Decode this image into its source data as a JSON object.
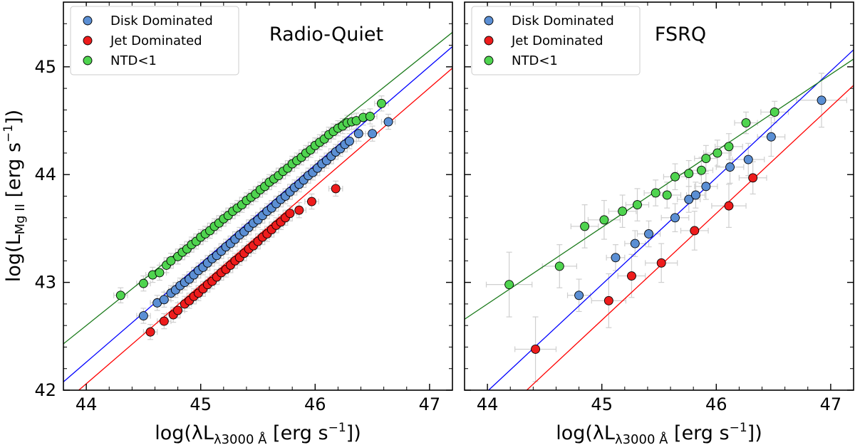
{
  "chart_data": [
    {
      "type": "scatter",
      "title": "Radio-Quiet",
      "xlabel": "log(λL_λ3000 Å [erg s^-1])",
      "ylabel": "log(L_MgII [erg s^-1])",
      "xlim": [
        43.8,
        47.2
      ],
      "ylim": [
        42.0,
        45.6
      ],
      "xticks": [
        "44",
        "45",
        "46",
        "47"
      ],
      "yticks": [
        "42",
        "43",
        "44",
        "45"
      ],
      "legend_position": "top-left",
      "series": [
        {
          "name": "Disk Dominated",
          "color": "#5b8fd4",
          "fit": {
            "slope": 0.915,
            "intercept": 2.0,
            "color": "#0000ff"
          },
          "x": [
            44.5,
            44.62,
            44.68,
            44.74,
            44.78,
            44.82,
            44.86,
            44.9,
            44.94,
            44.98,
            45.02,
            45.06,
            45.1,
            45.14,
            45.18,
            45.22,
            45.26,
            45.3,
            45.34,
            45.38,
            45.42,
            45.46,
            45.5,
            45.54,
            45.58,
            45.62,
            45.66,
            45.7,
            45.74,
            45.78,
            45.82,
            45.86,
            45.9,
            45.94,
            45.98,
            46.02,
            46.06,
            46.1,
            46.14,
            46.18,
            46.22,
            46.26,
            46.3,
            46.38,
            46.5,
            46.64
          ],
          "y": [
            42.69,
            42.81,
            42.84,
            42.9,
            42.93,
            42.97,
            43.0,
            43.03,
            43.07,
            43.11,
            43.14,
            43.18,
            43.22,
            43.25,
            43.29,
            43.33,
            43.36,
            43.4,
            43.44,
            43.47,
            43.51,
            43.55,
            43.58,
            43.62,
            43.66,
            43.69,
            43.73,
            43.77,
            43.8,
            43.84,
            43.88,
            43.91,
            43.95,
            43.99,
            44.02,
            44.06,
            44.1,
            44.13,
            44.17,
            44.21,
            44.24,
            44.28,
            44.31,
            44.38,
            44.38,
            44.49
          ]
        },
        {
          "name": "Jet Dominated",
          "color": "#ee1c1c",
          "fit": {
            "slope": 0.915,
            "intercept": 1.8,
            "color": "#ff0000"
          },
          "x": [
            44.56,
            44.68,
            44.76,
            44.8,
            44.86,
            44.9,
            44.94,
            44.98,
            45.02,
            45.06,
            45.1,
            45.14,
            45.18,
            45.22,
            45.26,
            45.3,
            45.34,
            45.38,
            45.42,
            45.46,
            45.5,
            45.54,
            45.58,
            45.62,
            45.66,
            45.7,
            45.74,
            45.78,
            45.86,
            45.97,
            46.18
          ],
          "y": [
            42.54,
            42.64,
            42.7,
            42.74,
            42.8,
            42.83,
            42.87,
            42.9,
            42.94,
            42.98,
            43.01,
            43.05,
            43.09,
            43.12,
            43.16,
            43.2,
            43.23,
            43.27,
            43.31,
            43.34,
            43.38,
            43.42,
            43.45,
            43.49,
            43.53,
            43.56,
            43.6,
            43.64,
            43.67,
            43.75,
            43.87
          ]
        },
        {
          "name": "NTD<1",
          "color": "#4fd44f",
          "fit": {
            "slope": 0.85,
            "intercept": 5.2,
            "color": "#1a7a1a"
          },
          "x": [
            44.3,
            44.5,
            44.58,
            44.64,
            44.7,
            44.74,
            44.8,
            44.84,
            44.88,
            44.92,
            44.96,
            45.0,
            45.04,
            45.08,
            45.12,
            45.16,
            45.2,
            45.24,
            45.28,
            45.32,
            45.36,
            45.4,
            45.44,
            45.48,
            45.52,
            45.56,
            45.6,
            45.64,
            45.68,
            45.72,
            45.76,
            45.8,
            45.84,
            45.88,
            45.92,
            45.96,
            46.0,
            46.04,
            46.08,
            46.12,
            46.16,
            46.2,
            46.24,
            46.28,
            46.32,
            46.36,
            46.42,
            46.48,
            46.58
          ],
          "y": [
            42.88,
            42.99,
            43.07,
            43.09,
            43.16,
            43.2,
            43.24,
            43.28,
            43.31,
            43.35,
            43.38,
            43.42,
            43.45,
            43.48,
            43.52,
            43.55,
            43.59,
            43.62,
            43.66,
            43.69,
            43.72,
            43.76,
            43.79,
            43.82,
            43.86,
            43.89,
            43.93,
            43.96,
            43.99,
            44.03,
            44.06,
            44.1,
            44.13,
            44.16,
            44.2,
            44.23,
            44.27,
            44.3,
            44.33,
            44.37,
            44.4,
            44.43,
            44.45,
            44.48,
            44.49,
            44.5,
            44.53,
            44.54,
            44.66
          ]
        }
      ]
    },
    {
      "type": "scatter",
      "title": "FSRQ",
      "xlabel": "log(λL_λ3000 Å [erg s^-1])",
      "ylabel": "",
      "xlim": [
        43.8,
        47.2
      ],
      "ylim": [
        42.0,
        45.6
      ],
      "xticks": [
        "44",
        "45",
        "46",
        "47"
      ],
      "yticks": [],
      "legend_position": "top-left",
      "series": [
        {
          "name": "Disk Dominated",
          "color": "#5b8fd4",
          "fit": {
            "slope": 0.99,
            "intercept": -1.57,
            "color": "#0000ff"
          },
          "x": [
            44.8,
            45.12,
            45.29,
            45.41,
            45.64,
            45.76,
            45.82,
            45.91,
            46.12,
            46.28,
            46.48,
            46.92
          ],
          "y": [
            42.88,
            43.23,
            43.36,
            43.45,
            43.6,
            43.77,
            43.81,
            43.89,
            44.07,
            44.14,
            44.35,
            44.69
          ],
          "xerr": [
            0.1,
            0.08,
            0.09,
            0.1,
            0.12,
            0.1,
            0.08,
            0.1,
            0.12,
            0.14,
            0.12,
            0.22
          ],
          "yerr": [
            0.15,
            0.12,
            0.12,
            0.12,
            0.13,
            0.12,
            0.12,
            0.12,
            0.15,
            0.15,
            0.18,
            0.25
          ]
        },
        {
          "name": "Jet Dominated",
          "color": "#ee1c1c",
          "fit": {
            "slope": 0.99,
            "intercept": -1.9,
            "color": "#ff0000"
          },
          "x": [
            44.42,
            45.06,
            45.26,
            45.52,
            45.81,
            46.11,
            46.32
          ],
          "y": [
            42.38,
            42.83,
            43.06,
            43.18,
            43.48,
            43.71,
            43.97
          ],
          "xerr": [
            0.18,
            0.15,
            0.12,
            0.14,
            0.12,
            0.15,
            0.12
          ],
          "yerr": [
            0.3,
            0.25,
            0.2,
            0.18,
            0.18,
            0.2,
            0.15
          ]
        },
        {
          "name": "NTD<1",
          "color": "#4fd44f",
          "fit": {
            "slope": 0.71,
            "intercept": 11.56,
            "color": "#1a7a1a"
          },
          "x": [
            44.19,
            44.63,
            44.85,
            45.02,
            45.18,
            45.31,
            45.47,
            45.57,
            45.64,
            45.76,
            45.87,
            45.91,
            46.01,
            46.11,
            46.26,
            46.51
          ],
          "y": [
            42.98,
            43.15,
            43.52,
            43.58,
            43.66,
            43.72,
            43.83,
            43.81,
            43.98,
            44.01,
            44.04,
            44.15,
            44.2,
            44.26,
            44.48,
            44.58
          ],
          "xerr": [
            0.2,
            0.15,
            0.12,
            0.14,
            0.12,
            0.1,
            0.1,
            0.12,
            0.1,
            0.1,
            0.1,
            0.1,
            0.12,
            0.12,
            0.1,
            0.12
          ],
          "yerr": [
            0.3,
            0.2,
            0.2,
            0.18,
            0.15,
            0.15,
            0.12,
            0.12,
            0.12,
            0.12,
            0.12,
            0.12,
            0.12,
            0.12,
            0.1,
            0.1
          ]
        }
      ]
    }
  ],
  "labels": {
    "xlabel_left_main": "log(λL",
    "xlabel_left_sub": "λ3000 Å",
    "xlabel_left_rest": " [erg s",
    "xlabel_left_sup": "−1",
    "xlabel_left_end": "])",
    "ylabel_main": "log(L",
    "ylabel_sub": "Mg II",
    "ylabel_rest": " [erg s",
    "ylabel_sup": "−1",
    "ylabel_end": "])",
    "xlabel_right_main": "log(λL",
    "xlabel_right_sub": "λ3000 Å",
    "xlabel_right_rest": " [erg s",
    "xlabel_right_sup": "−1",
    "xlabel_right_end": "])"
  }
}
